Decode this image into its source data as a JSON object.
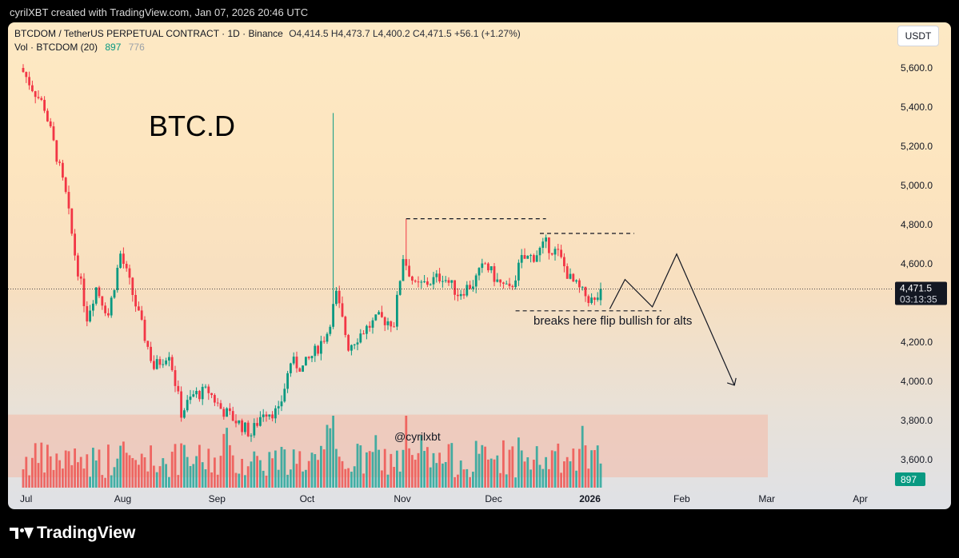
{
  "header": {
    "caption": "cyrilXBT created with TradingView.com, Jan 07, 2026 20:46 UTC"
  },
  "legend": {
    "symbol": "BTCDOM / TetherUS PERPETUAL CONTRACT · 1D · Binance",
    "ohlc": "O4,414.5  H4,473.7  L4,400.2  C4,471.5  +56.1 (+1.27%)",
    "vol_label": "Vol · BTCDOM (20)",
    "vol_value": "897",
    "vol_ma": "776"
  },
  "currency_button": "USDT",
  "price_tag": {
    "price": "4,471.5",
    "countdown": "03:13:35"
  },
  "volume_tag": "897",
  "brand": {
    "name": "TradingView",
    "logo_icon": "tradingview-logo-icon"
  },
  "colors": {
    "up": "#089981",
    "down": "#f23645",
    "up_vol": "#26a69a",
    "down_vol": "#ef5350",
    "zone": "#f4b9a6"
  },
  "annotations": {
    "title": "BTC.D",
    "note": "breaks here flip bullish for alts",
    "watermark": "@cyrilxbt"
  },
  "chart_data": {
    "type": "candlestick",
    "y_ticks": [
      "5,600.0",
      "5,400.0",
      "5,200.0",
      "5,000.0",
      "4,800.0",
      "4,600.0",
      "4,200.0",
      "4,000.0",
      "3,800.0",
      "3,600.0"
    ],
    "ylim": [
      3450,
      5750
    ],
    "x_ticks": [
      "Jul",
      "Aug",
      "Sep",
      "Oct",
      "Nov",
      "Dec",
      "2026",
      "Feb",
      "Mar",
      "Apr"
    ],
    "x_bold_tick": "2026",
    "close_path": [
      [
        "2025-07-01",
        5580
      ],
      [
        "2025-07-04",
        5500
      ],
      [
        "2025-07-08",
        5400
      ],
      [
        "2025-07-12",
        5150
      ],
      [
        "2025-07-15",
        4950
      ],
      [
        "2025-07-18",
        4650
      ],
      [
        "2025-07-22",
        4330
      ],
      [
        "2025-07-25",
        4480
      ],
      [
        "2025-07-29",
        4340
      ],
      [
        "2025-08-02",
        4650
      ],
      [
        "2025-08-05",
        4500
      ],
      [
        "2025-08-09",
        4280
      ],
      [
        "2025-08-13",
        4070
      ],
      [
        "2025-08-18",
        4150
      ],
      [
        "2025-08-22",
        3840
      ],
      [
        "2025-08-26",
        3930
      ],
      [
        "2025-08-31",
        3950
      ],
      [
        "2025-09-04",
        3860
      ],
      [
        "2025-09-09",
        3800
      ],
      [
        "2025-09-14",
        3730
      ],
      [
        "2025-09-18",
        3850
      ],
      [
        "2025-09-23",
        3840
      ],
      [
        "2025-09-27",
        4100
      ],
      [
        "2025-10-01",
        4070
      ],
      [
        "2025-10-05",
        4150
      ],
      [
        "2025-10-09",
        4250
      ],
      [
        "2025-10-12",
        4440
      ],
      [
        "2025-10-16",
        4180
      ],
      [
        "2025-10-21",
        4260
      ],
      [
        "2025-10-26",
        4320
      ],
      [
        "2025-10-31",
        4300
      ],
      [
        "2025-11-03",
        4640
      ],
      [
        "2025-11-07",
        4480
      ],
      [
        "2025-11-12",
        4510
      ],
      [
        "2025-11-16",
        4540
      ],
      [
        "2025-11-21",
        4450
      ],
      [
        "2025-11-26",
        4500
      ],
      [
        "2025-11-30",
        4600
      ],
      [
        "2025-12-04",
        4510
      ],
      [
        "2025-12-08",
        4460
      ],
      [
        "2025-12-12",
        4620
      ],
      [
        "2025-12-16",
        4640
      ],
      [
        "2025-12-20",
        4700
      ],
      [
        "2025-12-24",
        4650
      ],
      [
        "2025-12-28",
        4520
      ],
      [
        "2026-01-01",
        4450
      ],
      [
        "2026-01-05",
        4400
      ],
      [
        "2026-01-07",
        4471.5
      ]
    ],
    "spike_highs": [
      [
        "2025-10-11",
        5370
      ],
      [
        "2025-11-04",
        4830
      ]
    ],
    "levels": [
      {
        "kind": "resistance",
        "price": 4830,
        "from": "2025-11-04",
        "to": "2025-12-20"
      },
      {
        "kind": "resistance",
        "price": 4755,
        "from": "2025-12-18",
        "to": "2026-01-18"
      },
      {
        "kind": "support",
        "price": 4360,
        "from": "2025-12-10",
        "to": "2026-01-27"
      }
    ],
    "forecast_path": [
      [
        "2026-01-10",
        4370
      ],
      [
        "2026-01-15",
        4520
      ],
      [
        "2026-01-24",
        4380
      ],
      [
        "2026-02-01",
        4650
      ],
      [
        "2026-02-20",
        3980
      ]
    ],
    "last_price": 4471.5
  }
}
